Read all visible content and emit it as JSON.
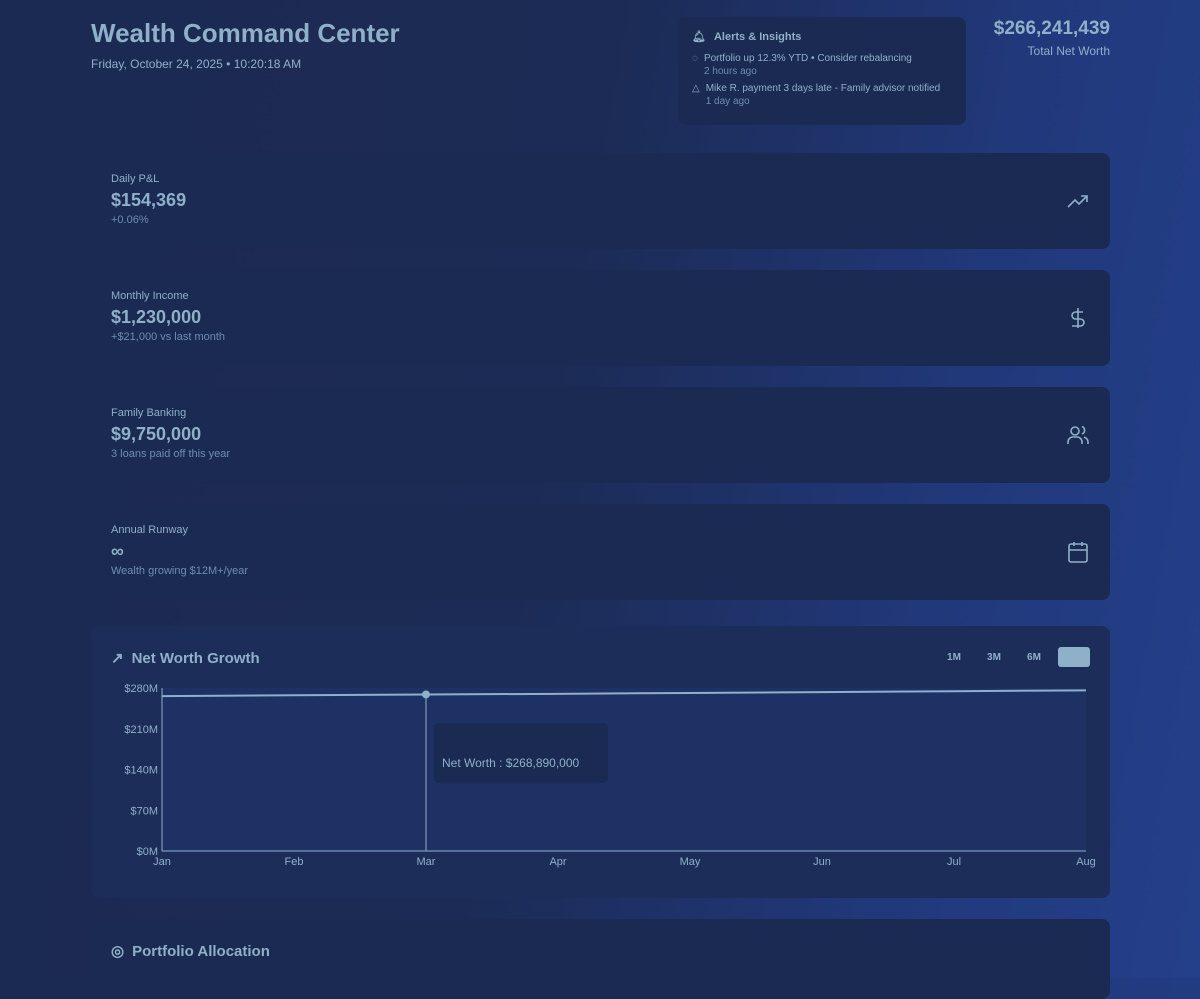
{
  "header": {
    "title": "Wealth Command Center",
    "datetime": "Friday, October 24, 2025 • 10:20:18 AM",
    "net_worth": "$266,241,439",
    "net_worth_label": "Total Net Worth"
  },
  "alerts": {
    "title": "Alerts & Insights",
    "items": [
      {
        "icon": "check-circle-icon",
        "text": "Portfolio up 12.3% YTD • Consider rebalancing",
        "time": "2 hours ago"
      },
      {
        "icon": "warning-icon",
        "text": "Mike R. payment 3 days late - Family advisor notified",
        "time": "1 day ago"
      }
    ]
  },
  "cards": [
    {
      "label": "Daily P&L",
      "value": "$154,369",
      "sub": "+0.06%",
      "icon": "trending-up-icon"
    },
    {
      "label": "Monthly Income",
      "value": "$1,230,000",
      "sub": "+$21,000 vs last month",
      "icon": "dollar-icon"
    },
    {
      "label": "Family Banking",
      "value": "$9,750,000",
      "sub": "3 loans paid off this year",
      "icon": "users-icon"
    },
    {
      "label": "Annual Runway",
      "value": "∞",
      "sub": "Wealth growing $12M+/year",
      "icon": "calendar-icon"
    }
  ],
  "chart_section": {
    "title": "Net Worth Growth",
    "ranges": [
      "1M",
      "3M",
      "6M",
      ""
    ],
    "tooltip": "Net Worth : $268,890,000"
  },
  "chart_data": {
    "type": "line",
    "title": "Net Worth Growth",
    "categories": [
      "Jan",
      "Feb",
      "Mar",
      "Apr",
      "May",
      "Jun",
      "Jul",
      "Aug"
    ],
    "series": [
      {
        "name": "Net Worth",
        "values": [
          266000000,
          267500000,
          268890000,
          270000000,
          271500000,
          273000000,
          274500000,
          276000000
        ]
      }
    ],
    "yticks": [
      "$0M",
      "$70M",
      "$140M",
      "$210M",
      "$280M"
    ],
    "ylim": [
      0,
      280000000
    ],
    "highlight_index": 2
  },
  "allocation": {
    "title": "Portfolio Allocation"
  },
  "colors": {
    "text": "#8fb0c9",
    "card": "#1b2a52"
  }
}
